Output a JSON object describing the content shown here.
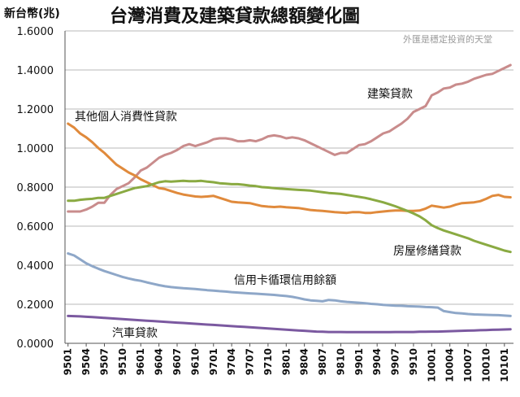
{
  "chart_data": {
    "type": "line",
    "title": "台灣消費及建築貸款總額變化圖",
    "ylabel": "新台幣(兆)",
    "watermark": "外匯是穩定投資的天堂",
    "ylim": [
      0,
      1.6
    ],
    "yticks": [
      "0.0000",
      "0.2000",
      "0.4000",
      "0.6000",
      "0.8000",
      "1.0000",
      "1.2000",
      "1.4000",
      "1.6000"
    ],
    "xtick_labels": [
      "9501",
      "9504",
      "9507",
      "9510",
      "9601",
      "9604",
      "9607",
      "9610",
      "9701",
      "9704",
      "9707",
      "9710",
      "9801",
      "9804",
      "9807",
      "9810",
      "9901",
      "9904",
      "9907",
      "9910",
      "10001",
      "10004",
      "10007",
      "10010",
      "10101"
    ],
    "grid": "horizontal",
    "x": [
      "9501",
      "9502",
      "9503",
      "9504",
      "9505",
      "9506",
      "9507",
      "9508",
      "9509",
      "9510",
      "9511",
      "9512",
      "9601",
      "9602",
      "9603",
      "9604",
      "9605",
      "9606",
      "9607",
      "9608",
      "9609",
      "9610",
      "9611",
      "9612",
      "9701",
      "9702",
      "9703",
      "9704",
      "9705",
      "9706",
      "9707",
      "9708",
      "9709",
      "9710",
      "9711",
      "9712",
      "9801",
      "9802",
      "9803",
      "9804",
      "9805",
      "9806",
      "9807",
      "9808",
      "9809",
      "9810",
      "9811",
      "9812",
      "9901",
      "9902",
      "9903",
      "9904",
      "9905",
      "9906",
      "9907",
      "9908",
      "9909",
      "9910",
      "9911",
      "9912",
      "10001",
      "10002",
      "10003",
      "10004",
      "10005",
      "10006",
      "10007",
      "10008",
      "10009",
      "10010",
      "10011",
      "10012",
      "10101",
      "10102"
    ],
    "series": [
      {
        "name": "建築貸款",
        "color": "#c98c8c",
        "label_anchor_index": 54,
        "values": [
          0.675,
          0.675,
          0.675,
          0.685,
          0.7,
          0.72,
          0.72,
          0.76,
          0.79,
          0.805,
          0.82,
          0.85,
          0.885,
          0.9,
          0.925,
          0.95,
          0.965,
          0.975,
          0.99,
          1.01,
          1.02,
          1.01,
          1.02,
          1.03,
          1.045,
          1.05,
          1.05,
          1.045,
          1.035,
          1.035,
          1.04,
          1.035,
          1.045,
          1.06,
          1.065,
          1.06,
          1.05,
          1.055,
          1.05,
          1.04,
          1.025,
          1.01,
          0.995,
          0.98,
          0.965,
          0.975,
          0.975,
          0.995,
          1.015,
          1.02,
          1.035,
          1.055,
          1.075,
          1.085,
          1.105,
          1.125,
          1.15,
          1.185,
          1.2,
          1.215,
          1.27,
          1.285,
          1.305,
          1.31,
          1.325,
          1.33,
          1.34,
          1.355,
          1.365,
          1.375,
          1.38,
          1.395,
          1.41,
          1.425
        ]
      },
      {
        "name": "其他個人消費性貸款",
        "color": "#e08a3c",
        "label_anchor_index": 0,
        "values": [
          1.125,
          1.105,
          1.075,
          1.055,
          1.03,
          1.0,
          0.975,
          0.945,
          0.915,
          0.895,
          0.875,
          0.86,
          0.84,
          0.825,
          0.81,
          0.795,
          0.79,
          0.78,
          0.77,
          0.762,
          0.757,
          0.752,
          0.75,
          0.752,
          0.755,
          0.745,
          0.735,
          0.725,
          0.722,
          0.72,
          0.718,
          0.71,
          0.703,
          0.7,
          0.698,
          0.7,
          0.697,
          0.695,
          0.693,
          0.688,
          0.683,
          0.68,
          0.678,
          0.675,
          0.672,
          0.67,
          0.668,
          0.672,
          0.672,
          0.668,
          0.668,
          0.672,
          0.675,
          0.678,
          0.68,
          0.68,
          0.678,
          0.678,
          0.68,
          0.69,
          0.705,
          0.7,
          0.695,
          0.7,
          0.71,
          0.718,
          0.72,
          0.722,
          0.728,
          0.74,
          0.755,
          0.76,
          0.75,
          0.748
        ]
      },
      {
        "name": "房屋修繕貸款",
        "color": "#8aaa42",
        "label_anchor_index": 66,
        "values": [
          0.73,
          0.73,
          0.735,
          0.738,
          0.74,
          0.745,
          0.745,
          0.755,
          0.765,
          0.775,
          0.785,
          0.795,
          0.8,
          0.805,
          0.815,
          0.825,
          0.83,
          0.828,
          0.83,
          0.832,
          0.83,
          0.83,
          0.832,
          0.828,
          0.825,
          0.82,
          0.818,
          0.815,
          0.815,
          0.812,
          0.808,
          0.805,
          0.8,
          0.798,
          0.795,
          0.792,
          0.79,
          0.788,
          0.786,
          0.784,
          0.782,
          0.778,
          0.774,
          0.77,
          0.768,
          0.765,
          0.76,
          0.755,
          0.75,
          0.745,
          0.738,
          0.73,
          0.722,
          0.712,
          0.702,
          0.69,
          0.678,
          0.665,
          0.65,
          0.63,
          0.605,
          0.59,
          0.578,
          0.568,
          0.558,
          0.548,
          0.538,
          0.525,
          0.515,
          0.505,
          0.495,
          0.485,
          0.475,
          0.468
        ]
      },
      {
        "name": "信用卡循環信用餘額",
        "color": "#8ea7c8",
        "label_anchor_index": 38,
        "values": [
          0.46,
          0.45,
          0.43,
          0.41,
          0.395,
          0.382,
          0.37,
          0.36,
          0.35,
          0.34,
          0.332,
          0.325,
          0.32,
          0.312,
          0.305,
          0.298,
          0.292,
          0.288,
          0.285,
          0.282,
          0.28,
          0.278,
          0.275,
          0.272,
          0.27,
          0.267,
          0.265,
          0.262,
          0.26,
          0.258,
          0.256,
          0.254,
          0.252,
          0.25,
          0.248,
          0.245,
          0.242,
          0.238,
          0.232,
          0.225,
          0.22,
          0.218,
          0.215,
          0.222,
          0.22,
          0.215,
          0.212,
          0.21,
          0.208,
          0.205,
          0.202,
          0.2,
          0.197,
          0.195,
          0.193,
          0.192,
          0.19,
          0.189,
          0.188,
          0.186,
          0.185,
          0.183,
          0.165,
          0.16,
          0.155,
          0.153,
          0.15,
          0.148,
          0.147,
          0.146,
          0.145,
          0.144,
          0.142,
          0.14
        ]
      },
      {
        "name": "汽車貸款",
        "color": "#7b59a0",
        "label_anchor_index": 12,
        "values": [
          0.14,
          0.139,
          0.138,
          0.136,
          0.134,
          0.132,
          0.13,
          0.128,
          0.126,
          0.124,
          0.122,
          0.12,
          0.118,
          0.116,
          0.114,
          0.112,
          0.11,
          0.108,
          0.106,
          0.104,
          0.102,
          0.1,
          0.098,
          0.096,
          0.094,
          0.092,
          0.09,
          0.088,
          0.086,
          0.084,
          0.082,
          0.08,
          0.078,
          0.076,
          0.074,
          0.072,
          0.07,
          0.068,
          0.066,
          0.064,
          0.062,
          0.06,
          0.059,
          0.058,
          0.058,
          0.058,
          0.057,
          0.057,
          0.057,
          0.057,
          0.057,
          0.057,
          0.057,
          0.057,
          0.058,
          0.058,
          0.058,
          0.058,
          0.059,
          0.059,
          0.06,
          0.06,
          0.061,
          0.062,
          0.063,
          0.064,
          0.065,
          0.066,
          0.067,
          0.068,
          0.069,
          0.07,
          0.071,
          0.072
        ]
      }
    ]
  }
}
